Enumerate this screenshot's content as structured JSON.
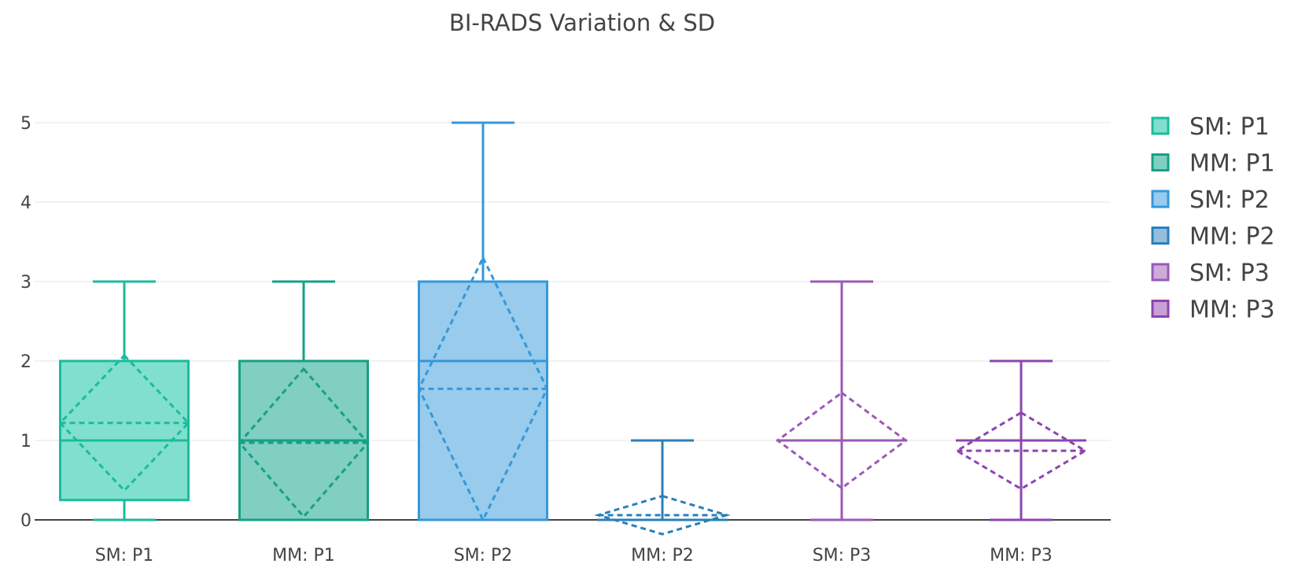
{
  "chart_data": {
    "type": "box",
    "title": "BI-RADS Variation & SD",
    "xlabel": "",
    "ylabel": "",
    "ylim": [
      -0.2,
      5.35
    ],
    "yticks": [
      0,
      1,
      2,
      3,
      4,
      5
    ],
    "grid": true,
    "legend_position": "right",
    "categories": [
      "SM: P1",
      "MM: P1",
      "SM: P2",
      "MM: P2",
      "SM: P3",
      "MM: P3"
    ],
    "series": [
      {
        "name": "SM: P1",
        "color": "#1abc9c",
        "fill": "#81dfcd",
        "min": 0,
        "q1": 0.25,
        "median": 1,
        "q3": 2,
        "max": 3,
        "mean": 1.22,
        "sd": 0.85
      },
      {
        "name": "MM: P1",
        "color": "#16a085",
        "fill": "#80cfc1",
        "min": 0,
        "q1": 0,
        "median": 1,
        "q3": 2,
        "max": 3,
        "mean": 0.97,
        "sd": 0.93
      },
      {
        "name": "SM: P2",
        "color": "#3498db",
        "fill": "#98cbec",
        "min": 0,
        "q1": 0,
        "median": 2,
        "q3": 3,
        "max": 5,
        "mean": 1.65,
        "sd": 1.65
      },
      {
        "name": "MM: P2",
        "color": "#2980b9",
        "fill": "#93bfdc",
        "min": 0,
        "q1": 0,
        "median": 0,
        "q3": 0,
        "max": 1,
        "mean": 0.06,
        "sd": 0.24
      },
      {
        "name": "SM: P3",
        "color": "#9b59b6",
        "fill": "#cdabda",
        "min": 0,
        "q1": 1,
        "median": 1,
        "q3": 1,
        "max": 3,
        "mean": 1,
        "sd": 0.6
      },
      {
        "name": "MM: P3",
        "color": "#8e44ad",
        "fill": "#c6a1d6",
        "min": 0,
        "q1": 1,
        "median": 1,
        "q3": 1,
        "max": 2,
        "mean": 0.87,
        "sd": 0.48
      }
    ]
  }
}
